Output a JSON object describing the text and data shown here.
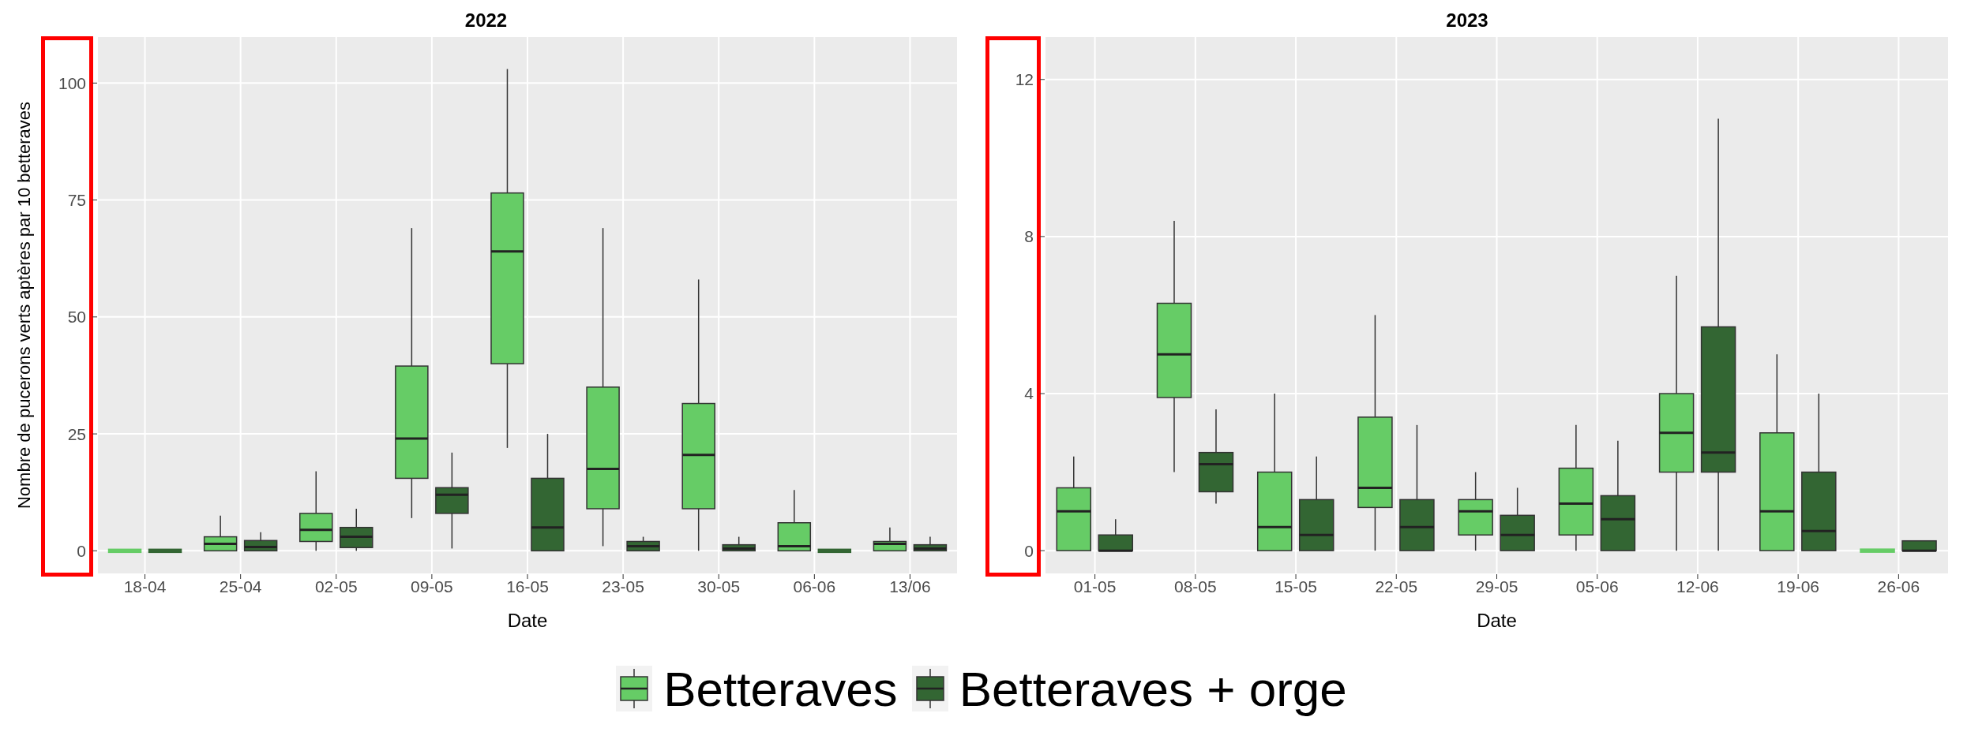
{
  "chart_data": [
    {
      "type": "box",
      "title": "2022",
      "xlabel": "Date",
      "ylabel": "Nombre de pucerons verts aptères par 10 betteraves",
      "categories": [
        "18-04",
        "25-04",
        "02-05",
        "09-05",
        "16-05",
        "23-05",
        "30-05",
        "06-06",
        "13/06"
      ],
      "ylim": [
        -5,
        110
      ],
      "yticks": [
        0,
        25,
        50,
        75,
        100
      ],
      "grid": true,
      "legend": "bottom",
      "series": [
        {
          "name": "Betteraves",
          "color": "#66cc66",
          "boxes": [
            {
              "low": 0,
              "q1": 0,
              "median": 0,
              "q3": 0,
              "high": 0
            },
            {
              "low": 0,
              "q1": 0,
              "median": 1.5,
              "q3": 3,
              "high": 7.5
            },
            {
              "low": 0,
              "q1": 2,
              "median": 4.5,
              "q3": 8,
              "high": 17
            },
            {
              "low": 7,
              "q1": 15.5,
              "median": 24,
              "q3": 39.5,
              "high": 69
            },
            {
              "low": 22,
              "q1": 40,
              "median": 64,
              "q3": 76.5,
              "high": 103
            },
            {
              "low": 1,
              "q1": 9,
              "median": 17.5,
              "q3": 35,
              "high": 69
            },
            {
              "low": 0,
              "q1": 9,
              "median": 20.5,
              "q3": 31.5,
              "high": 58
            },
            {
              "low": 0,
              "q1": 0,
              "median": 1,
              "q3": 6,
              "high": 13
            },
            {
              "low": 0,
              "q1": 0,
              "median": 1.5,
              "q3": 2,
              "high": 5
            }
          ]
        },
        {
          "name": "Betteraves + orge",
          "color": "#336633",
          "boxes": [
            {
              "low": 0,
              "q1": 0,
              "median": 0,
              "q3": 0,
              "high": 0
            },
            {
              "low": 0,
              "q1": 0,
              "median": 0.8,
              "q3": 2.2,
              "high": 4
            },
            {
              "low": 0,
              "q1": 0.7,
              "median": 3,
              "q3": 5,
              "high": 9
            },
            {
              "low": 0.5,
              "q1": 8,
              "median": 12,
              "q3": 13.5,
              "high": 21
            },
            {
              "low": 0,
              "q1": 0,
              "median": 5,
              "q3": 15.5,
              "high": 25
            },
            {
              "low": 0,
              "q1": 0,
              "median": 1,
              "q3": 2,
              "high": 3
            },
            {
              "low": 0,
              "q1": 0,
              "median": 0.5,
              "q3": 1.3,
              "high": 3
            },
            {
              "low": 0,
              "q1": 0,
              "median": 0,
              "q3": 0,
              "high": 0
            },
            {
              "low": 0,
              "q1": 0,
              "median": 0.5,
              "q3": 1.3,
              "high": 3
            }
          ]
        }
      ]
    },
    {
      "type": "box",
      "title": "2023",
      "xlabel": "Date",
      "categories": [
        "01-05",
        "08-05",
        "15-05",
        "22-05",
        "29-05",
        "05-06",
        "12-06",
        "19-06",
        "26-06"
      ],
      "ylim": [
        -0.6,
        13.1
      ],
      "yticks": [
        0,
        4,
        8,
        12
      ],
      "grid": true,
      "legend": "bottom",
      "series": [
        {
          "name": "Betteraves",
          "color": "#66cc66",
          "boxes": [
            {
              "low": 0,
              "q1": 0,
              "median": 1,
              "q3": 1.6,
              "high": 2.4
            },
            {
              "low": 2,
              "q1": 3.9,
              "median": 5,
              "q3": 6.3,
              "high": 8.4
            },
            {
              "low": 0,
              "q1": 0,
              "median": 0.6,
              "q3": 2,
              "high": 4
            },
            {
              "low": 0,
              "q1": 1.1,
              "median": 1.6,
              "q3": 3.4,
              "high": 6
            },
            {
              "low": 0,
              "q1": 0.4,
              "median": 1,
              "q3": 1.3,
              "high": 2
            },
            {
              "low": 0,
              "q1": 0.4,
              "median": 1.2,
              "q3": 2.1,
              "high": 3.2
            },
            {
              "low": 0,
              "q1": 2,
              "median": 3,
              "q3": 4,
              "high": 7
            },
            {
              "low": 0,
              "q1": 0,
              "median": 1,
              "q3": 3,
              "high": 5
            },
            {
              "low": 0,
              "q1": 0,
              "median": 0,
              "q3": 0,
              "high": 0
            }
          ]
        },
        {
          "name": "Betteraves + orge",
          "color": "#336633",
          "boxes": [
            {
              "low": 0,
              "q1": 0,
              "median": 0,
              "q3": 0.4,
              "high": 0.8
            },
            {
              "low": 1.2,
              "q1": 1.5,
              "median": 2.2,
              "q3": 2.5,
              "high": 3.6
            },
            {
              "low": 0,
              "q1": 0,
              "median": 0.4,
              "q3": 1.3,
              "high": 2.4
            },
            {
              "low": 0,
              "q1": 0,
              "median": 0.6,
              "q3": 1.3,
              "high": 3.2
            },
            {
              "low": 0,
              "q1": 0,
              "median": 0.4,
              "q3": 0.9,
              "high": 1.6
            },
            {
              "low": 0,
              "q1": 0,
              "median": 0.8,
              "q3": 1.4,
              "high": 2.8
            },
            {
              "low": 0,
              "q1": 2,
              "median": 2.5,
              "q3": 5.7,
              "high": 11
            },
            {
              "low": 0,
              "q1": 0,
              "median": 0.5,
              "q3": 2,
              "high": 4
            },
            {
              "low": 0,
              "q1": 0,
              "median": 0,
              "q3": 0.25,
              "high": 0.25
            }
          ]
        }
      ]
    }
  ]
}
